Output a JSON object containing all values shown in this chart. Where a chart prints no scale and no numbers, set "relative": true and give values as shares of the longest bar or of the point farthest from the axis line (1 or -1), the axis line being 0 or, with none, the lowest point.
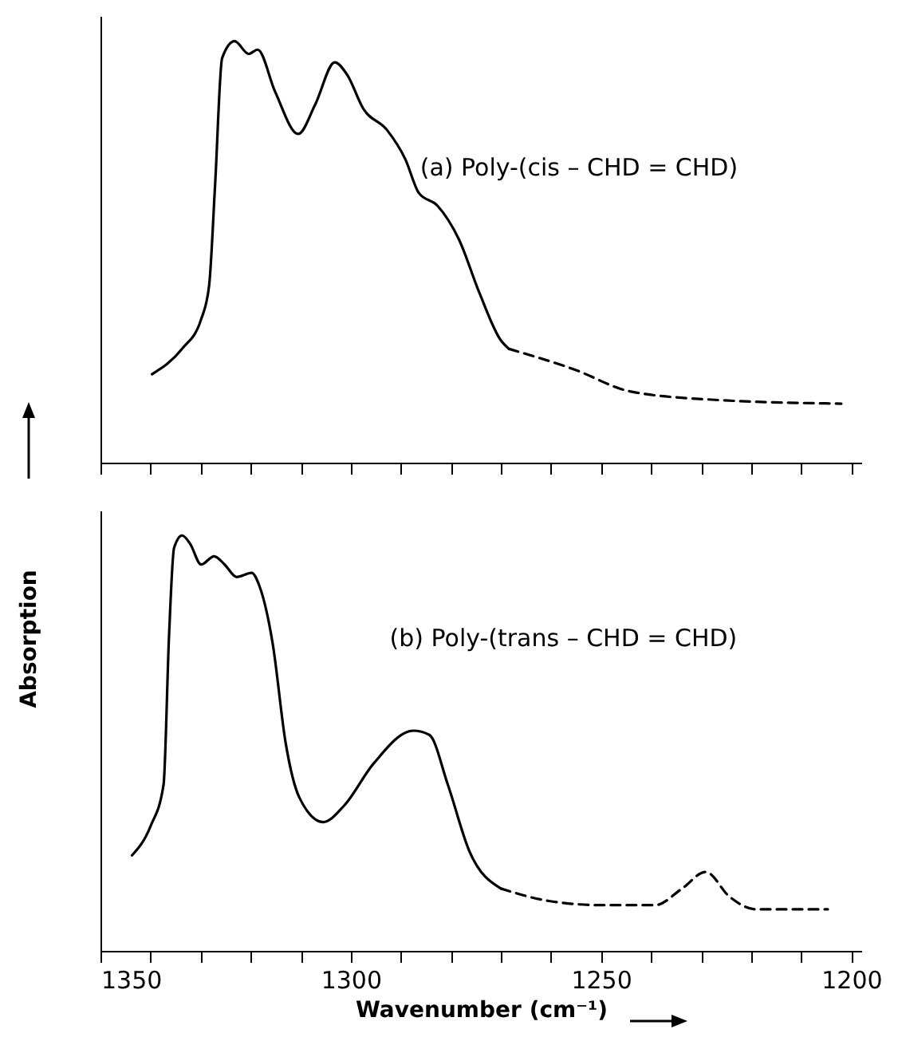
{
  "chart_data": [
    {
      "type": "line",
      "relative": true,
      "annotations": [
        "(a) Poly-(cis – CHD = CHD)"
      ],
      "xlim": [
        1350,
        1198
      ],
      "xticks": [
        {
          "value": 1350,
          "label": null
        },
        {
          "value": 1340,
          "label": null
        },
        {
          "value": 1330,
          "label": null
        },
        {
          "value": 1320,
          "label": null
        },
        {
          "value": 1310,
          "label": null
        },
        {
          "value": 1300,
          "label": null
        },
        {
          "value": 1290,
          "label": null
        },
        {
          "value": 1280,
          "label": null
        },
        {
          "value": 1270,
          "label": null
        },
        {
          "value": 1260,
          "label": null
        },
        {
          "value": 1250,
          "label": null
        },
        {
          "value": 1240,
          "label": null
        },
        {
          "value": 1230,
          "label": null
        },
        {
          "value": 1220,
          "label": null
        },
        {
          "value": 1210,
          "label": null
        },
        {
          "value": 1200,
          "label": null
        }
      ],
      "tick_labels": false,
      "grid": false,
      "series": [
        {
          "color": "#000000",
          "line_style": "solid",
          "x": [
            1339.7,
            1333.7,
            1329.9,
            1328.3,
            1327.1,
            1325.7,
            1323.2,
            1320.4,
            1318.6,
            1315.1,
            1310.5,
            1307.1,
            1303.2,
            1300.7,
            1297.5,
            1292.8,
            1289.1,
            1286.4,
            1282.7,
            1278.4,
            1274.2,
            1270.0,
            1268.4
          ],
          "values": [
            0.21,
            0.27,
            0.34,
            0.42,
            0.66,
            0.96,
            1.0,
            0.97,
            0.98,
            0.88,
            0.78,
            0.85,
            0.95,
            0.92,
            0.84,
            0.79,
            0.72,
            0.64,
            0.61,
            0.53,
            0.4,
            0.29,
            0.27
          ]
        },
        {
          "color": "#000000",
          "line_style": "dashed",
          "x": [
            1268.4,
            1255.1,
            1244.5,
            1228.6,
            1202.0
          ],
          "values": [
            0.27,
            0.22,
            0.17,
            0.15,
            0.14
          ]
        }
      ]
    },
    {
      "type": "line",
      "relative": true,
      "annotations": [
        "(b) Poly-(trans – CHD = CHD)"
      ],
      "xlabel": "Wavenumber (cm⁻¹)",
      "ylabel": "Absorption",
      "xlim": [
        1350,
        1198
      ],
      "xticks": [
        1350,
        {
          "value": 1340,
          "label": null
        },
        {
          "value": 1330,
          "label": null
        },
        {
          "value": 1320,
          "label": null
        },
        {
          "value": 1310,
          "label": null
        },
        1300,
        {
          "value": 1290,
          "label": null
        },
        {
          "value": 1280,
          "label": null
        },
        {
          "value": 1270,
          "label": null
        },
        {
          "value": 1260,
          "label": null
        },
        1250,
        {
          "value": 1240,
          "label": null
        },
        {
          "value": 1230,
          "label": null
        },
        {
          "value": 1220,
          "label": null
        },
        {
          "value": 1210,
          "label": null
        },
        1200
      ],
      "tick_labels": "x",
      "grid": false,
      "series": [
        {
          "color": "#000000",
          "line_style": "solid",
          "x": [
            1343.7,
            1340.0,
            1337.4,
            1336.3,
            1335.3,
            1333.7,
            1332.1,
            1329.9,
            1327.3,
            1325.2,
            1322.8,
            1319.8,
            1318.3,
            1315.6,
            1313.0,
            1310.3,
            1305.5,
            1301.3,
            1295.5,
            1287.5,
            1284.3,
            1280.6,
            1276.3,
            1270.0
          ],
          "values": [
            0.23,
            0.3,
            0.4,
            0.76,
            0.97,
            1.0,
            0.98,
            0.93,
            0.95,
            0.93,
            0.9,
            0.91,
            0.88,
            0.74,
            0.5,
            0.37,
            0.31,
            0.35,
            0.45,
            0.53,
            0.52,
            0.4,
            0.24,
            0.15
          ]
        },
        {
          "color": "#000000",
          "line_style": "dashed",
          "x": [
            1270.0,
            1260.4,
            1249.8,
            1239.2,
            1233.8,
            1229.1,
            1224.3,
            1219.0,
            1204.7
          ],
          "values": [
            0.15,
            0.12,
            0.11,
            0.11,
            0.15,
            0.19,
            0.13,
            0.1,
            0.1
          ]
        }
      ]
    }
  ]
}
